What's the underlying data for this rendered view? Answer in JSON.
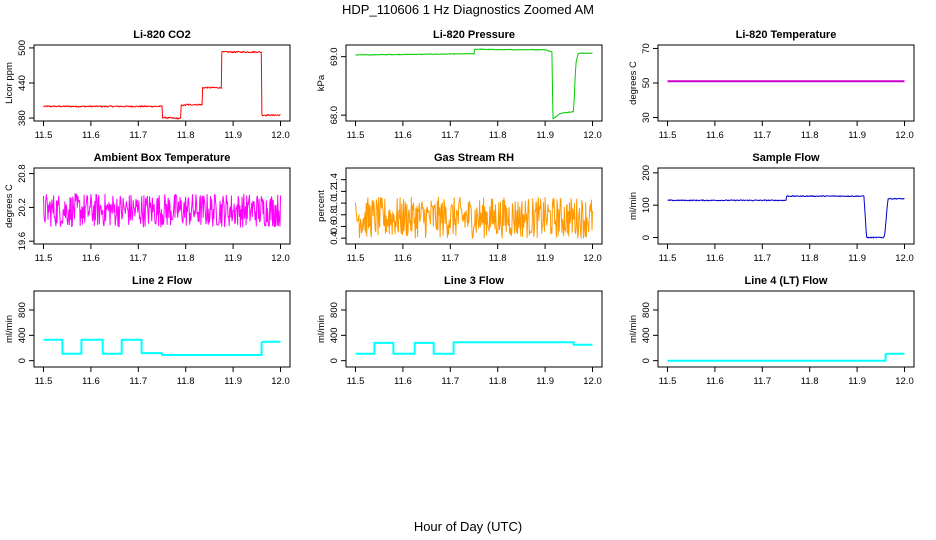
{
  "page_title": "HDP_110606  1 Hz Diagnostics Zoomed AM",
  "x_axis_label": "Hour of Day (UTC)",
  "colors": {
    "co2": "#ff0000",
    "pressure": "#00cc00",
    "licor_temp": "#cc00cc",
    "box_temp": "#ff00ff",
    "rh": "#ff9900",
    "sample_flow": "#0000cc",
    "line_flow": "#00ffff"
  },
  "chart_data": [
    {
      "type": "line",
      "title": "Li-820 CO2",
      "ylabel": "Licor ppm",
      "xlim": [
        11.5,
        12.0
      ],
      "ylim": [
        375,
        505
      ],
      "x_ticks": [
        "11.5",
        "11.6",
        "11.7",
        "11.8",
        "11.9",
        "12.0"
      ],
      "y_ticks": [
        "380",
        "440",
        "500"
      ],
      "y_tick_values": [
        380,
        440,
        500
      ],
      "color": "#ff0000",
      "noise": 1.2,
      "series": [
        {
          "x": [
            11.5,
            11.75,
            11.75,
            11.79,
            11.79,
            11.8,
            11.8,
            11.835,
            11.835,
            11.876,
            11.876,
            11.96,
            11.96,
            12.0
          ],
          "values": [
            400,
            400,
            381,
            379,
            402,
            402,
            403,
            403,
            432,
            432,
            493,
            493,
            385,
            385
          ]
        }
      ]
    },
    {
      "type": "line",
      "title": "Li-820 Pressure",
      "ylabel": "kPa",
      "xlim": [
        11.5,
        12.0
      ],
      "ylim": [
        67.9,
        69.2
      ],
      "x_ticks": [
        "11.5",
        "11.6",
        "11.7",
        "11.8",
        "11.9",
        "12.0"
      ],
      "y_ticks": [
        "68.0",
        "69.0"
      ],
      "y_tick_values": [
        68.0,
        69.0
      ],
      "color": "#00cc00",
      "noise": 0.006,
      "series": [
        {
          "x": [
            11.5,
            11.75,
            11.75,
            11.8,
            11.9,
            11.915,
            11.916,
            11.93,
            11.93,
            11.96,
            11.96,
            11.965,
            11.97,
            12.0
          ],
          "values": [
            69.03,
            69.05,
            69.13,
            69.12,
            69.12,
            69.08,
            67.93,
            68.02,
            68.03,
            68.06,
            68.06,
            68.9,
            69.06,
            69.06
          ]
        }
      ]
    },
    {
      "type": "line",
      "title": "Li-820 Temperature",
      "ylabel": "degrees C",
      "xlim": [
        11.5,
        12.0
      ],
      "ylim": [
        28,
        72
      ],
      "x_ticks": [
        "11.5",
        "11.6",
        "11.7",
        "11.8",
        "11.9",
        "12.0"
      ],
      "y_ticks": [
        "30",
        "50",
        "70"
      ],
      "y_tick_values": [
        30,
        50,
        70
      ],
      "color": "#cc00cc",
      "noise": 0,
      "series": [
        {
          "x": [
            11.5,
            12.0
          ],
          "values": [
            51,
            51
          ]
        }
      ]
    },
    {
      "type": "line",
      "title": "Ambient Box Temperature",
      "ylabel": "degrees C",
      "xlim": [
        11.5,
        12.0
      ],
      "ylim": [
        19.55,
        20.9
      ],
      "x_ticks": [
        "11.5",
        "11.6",
        "11.7",
        "11.8",
        "11.9",
        "12.0"
      ],
      "y_ticks": [
        "19.6",
        "20.2",
        "20.8"
      ],
      "y_tick_values": [
        19.6,
        20.2,
        20.8
      ],
      "color": "#ff00ff",
      "noise": 0.3,
      "series": [
        {
          "x": [
            11.5,
            12.0
          ],
          "values": [
            20.15,
            20.15
          ]
        }
      ]
    },
    {
      "type": "line",
      "title": "Gas Stream RH",
      "ylabel": "percent",
      "xlim": [
        11.5,
        12.0
      ],
      "ylim": [
        0.3,
        1.6
      ],
      "x_ticks": [
        "11.5",
        "11.6",
        "11.7",
        "11.8",
        "11.9",
        "12.0"
      ],
      "y_ticks": [
        "0.4",
        "0.6",
        "0.8",
        "1.0",
        "1.2",
        "1.4"
      ],
      "y_tick_values": [
        0.4,
        0.6,
        0.8,
        1.0,
        1.2,
        1.4
      ],
      "color": "#ff9900",
      "noise": 0.35,
      "series": [
        {
          "x": [
            11.5,
            12.0
          ],
          "values": [
            0.75,
            0.75
          ]
        }
      ]
    },
    {
      "type": "line",
      "title": "Sample Flow",
      "ylabel": "ml/min",
      "xlim": [
        11.5,
        12.0
      ],
      "ylim": [
        -20,
        215
      ],
      "x_ticks": [
        "11.5",
        "11.6",
        "11.7",
        "11.8",
        "11.9",
        "12.0"
      ],
      "y_ticks": [
        "0",
        "100",
        "200"
      ],
      "y_tick_values": [
        0,
        100,
        200
      ],
      "color": "#0000cc",
      "noise": 1.5,
      "series": [
        {
          "x": [
            11.5,
            11.75,
            11.75,
            11.915,
            11.915,
            11.92,
            11.955,
            11.958,
            11.965,
            12.0
          ],
          "values": [
            115,
            115,
            128,
            128,
            115,
            0,
            0,
            5,
            120,
            120
          ]
        }
      ]
    },
    {
      "type": "line",
      "title": "Line 2 Flow",
      "ylabel": "ml/min",
      "xlim": [
        11.5,
        12.0
      ],
      "ylim": [
        -100,
        1100
      ],
      "x_ticks": [
        "11.5",
        "11.6",
        "11.7",
        "11.8",
        "11.9",
        "12.0"
      ],
      "y_ticks": [
        "0",
        "400",
        "800"
      ],
      "y_tick_values": [
        0,
        400,
        800
      ],
      "color": "#00ffff",
      "noise": 0,
      "series": [
        {
          "x": [
            11.5,
            11.54,
            11.54,
            11.58,
            11.58,
            11.625,
            11.625,
            11.665,
            11.665,
            11.707,
            11.707,
            11.75,
            11.75,
            11.96,
            11.96,
            11.965,
            12.0
          ],
          "values": [
            330,
            330,
            110,
            110,
            330,
            330,
            110,
            110,
            330,
            330,
            120,
            120,
            90,
            90,
            290,
            300,
            300
          ]
        }
      ]
    },
    {
      "type": "line",
      "title": "Line 3 Flow",
      "ylabel": "ml/min",
      "xlim": [
        11.5,
        12.0
      ],
      "ylim": [
        -100,
        1100
      ],
      "x_ticks": [
        "11.5",
        "11.6",
        "11.7",
        "11.8",
        "11.9",
        "12.0"
      ],
      "y_ticks": [
        "0",
        "400",
        "800"
      ],
      "y_tick_values": [
        0,
        400,
        800
      ],
      "color": "#00ffff",
      "noise": 0,
      "series": [
        {
          "x": [
            11.5,
            11.54,
            11.54,
            11.58,
            11.58,
            11.625,
            11.625,
            11.665,
            11.665,
            11.707,
            11.707,
            11.96,
            11.96,
            12.0
          ],
          "values": [
            110,
            110,
            280,
            280,
            110,
            110,
            280,
            280,
            110,
            110,
            290,
            290,
            250,
            250
          ]
        }
      ]
    },
    {
      "type": "line",
      "title": "Line 4 (LT) Flow",
      "ylabel": "ml/min",
      "xlim": [
        11.5,
        12.0
      ],
      "ylim": [
        -100,
        1100
      ],
      "x_ticks": [
        "11.5",
        "11.6",
        "11.7",
        "11.8",
        "11.9",
        "12.0"
      ],
      "y_ticks": [
        "0",
        "400",
        "800"
      ],
      "y_tick_values": [
        0,
        400,
        800
      ],
      "color": "#00ffff",
      "noise": 0,
      "series": [
        {
          "x": [
            11.5,
            11.96,
            11.96,
            11.965,
            12.0
          ],
          "values": [
            0,
            0,
            100,
            110,
            110
          ]
        }
      ]
    }
  ]
}
